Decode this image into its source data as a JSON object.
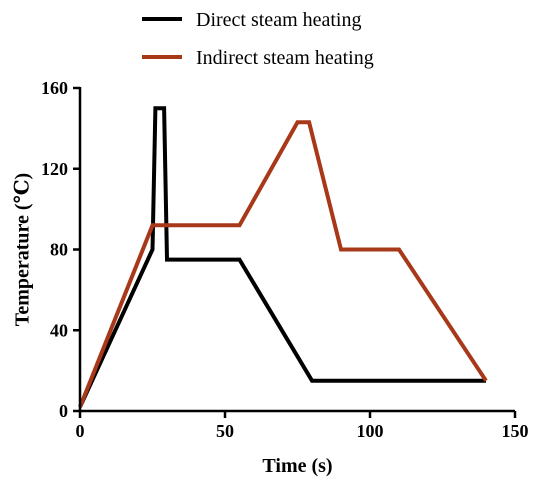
{
  "chart_data": {
    "type": "line",
    "title": "",
    "xlabel": "Time (s)",
    "ylabel": "Temperature (℃)",
    "xlim": [
      0,
      150
    ],
    "ylim": [
      0,
      160
    ],
    "xticks": [
      0,
      50,
      100,
      150
    ],
    "yticks": [
      0,
      40,
      80,
      120,
      160
    ],
    "grid": false,
    "legend_position": "top-center",
    "series": [
      {
        "name": "Direct steam heating",
        "color": "#000000",
        "points": [
          {
            "x": 0,
            "y": 2
          },
          {
            "x": 25,
            "y": 80
          },
          {
            "x": 26,
            "y": 150
          },
          {
            "x": 29,
            "y": 150
          },
          {
            "x": 30,
            "y": 75
          },
          {
            "x": 55,
            "y": 75
          },
          {
            "x": 80,
            "y": 15
          },
          {
            "x": 140,
            "y": 15
          }
        ]
      },
      {
        "name": "Indirect steam heating",
        "color": "#a8381a",
        "points": [
          {
            "x": 0,
            "y": 2
          },
          {
            "x": 25,
            "y": 92
          },
          {
            "x": 55,
            "y": 92
          },
          {
            "x": 75,
            "y": 143
          },
          {
            "x": 79,
            "y": 143
          },
          {
            "x": 90,
            "y": 80
          },
          {
            "x": 110,
            "y": 80
          },
          {
            "x": 140,
            "y": 15
          }
        ]
      }
    ]
  }
}
